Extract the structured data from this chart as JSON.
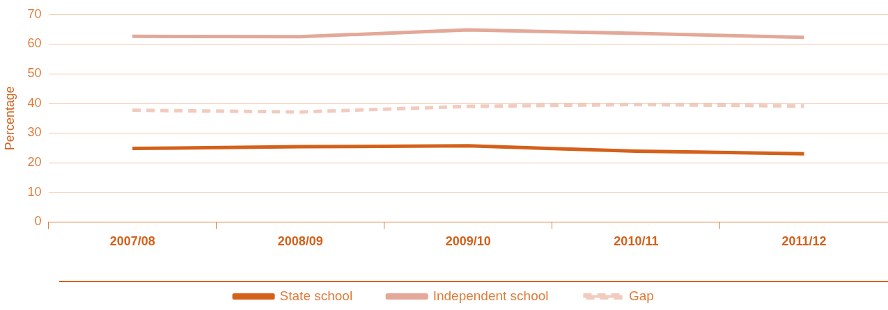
{
  "chart_data": {
    "type": "line",
    "ylabel": "Percentage",
    "categories": [
      "2007/08",
      "2008/09",
      "2009/10",
      "2010/11",
      "2011/12"
    ],
    "series": [
      {
        "name": "State school",
        "color": "#d4601a",
        "values": [
          24.8,
          25.4,
          25.7,
          23.9,
          23
        ]
      },
      {
        "name": "Independent school",
        "color": "#e3a898",
        "values": [
          62.6,
          62.5,
          64.8,
          63.6,
          62.3
        ]
      },
      {
        "name": "Gap",
        "color": "#f2cbbf",
        "values": [
          37.7,
          37.1,
          39,
          39.6,
          39.1
        ],
        "line_style": "dashed"
      }
    ],
    "ylim": [
      0,
      70
    ],
    "yticks": [
      0,
      10,
      20,
      30,
      40,
      50,
      60,
      70
    ],
    "grid": "y",
    "legend": "bottom",
    "marker": "none"
  }
}
